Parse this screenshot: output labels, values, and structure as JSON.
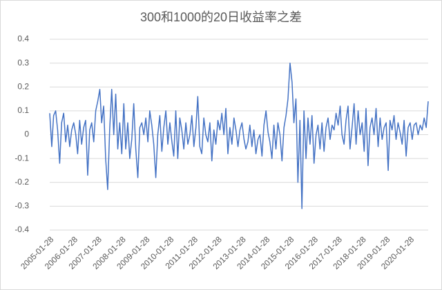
{
  "chart_data": {
    "type": "line",
    "title": "300和1000的20日收益率之差",
    "x": [
      "2005-01-28",
      "2005-02-28",
      "2005-03-28",
      "2005-04-28",
      "2005-05-28",
      "2005-06-28",
      "2005-07-28",
      "2005-08-28",
      "2005-09-28",
      "2005-10-28",
      "2005-11-28",
      "2005-12-28",
      "2006-01-28",
      "2006-02-28",
      "2006-03-28",
      "2006-04-28",
      "2006-05-28",
      "2006-06-28",
      "2006-07-28",
      "2006-08-28",
      "2006-09-28",
      "2006-10-28",
      "2006-11-28",
      "2006-12-28",
      "2007-01-28",
      "2007-02-28",
      "2007-03-28",
      "2007-04-28",
      "2007-05-28",
      "2007-06-28",
      "2007-07-28",
      "2007-08-28",
      "2007-09-28",
      "2007-10-28",
      "2007-11-28",
      "2007-12-28",
      "2008-01-28",
      "2008-02-28",
      "2008-03-28",
      "2008-04-28",
      "2008-05-28",
      "2008-06-28",
      "2008-07-28",
      "2008-08-28",
      "2008-09-28",
      "2008-10-28",
      "2008-11-28",
      "2008-12-28",
      "2009-01-28",
      "2009-02-28",
      "2009-03-28",
      "2009-04-28",
      "2009-05-28",
      "2009-06-28",
      "2009-07-28",
      "2009-08-28",
      "2009-09-28",
      "2009-10-28",
      "2009-11-28",
      "2009-12-28",
      "2010-01-28",
      "2010-02-28",
      "2010-03-28",
      "2010-04-28",
      "2010-05-28",
      "2010-06-28",
      "2010-07-28",
      "2010-08-28",
      "2010-09-28",
      "2010-10-28",
      "2010-11-28",
      "2010-12-28",
      "2011-01-28",
      "2011-02-28",
      "2011-03-28",
      "2011-04-28",
      "2011-05-28",
      "2011-06-28",
      "2011-07-28",
      "2011-08-28",
      "2011-09-28",
      "2011-10-28",
      "2011-11-28",
      "2011-12-28",
      "2012-01-28",
      "2012-02-28",
      "2012-03-28",
      "2012-04-28",
      "2012-05-28",
      "2012-06-28",
      "2012-07-28",
      "2012-08-28",
      "2012-09-28",
      "2012-10-28",
      "2012-11-28",
      "2012-12-28",
      "2013-01-28",
      "2013-02-28",
      "2013-03-28",
      "2013-04-28",
      "2013-05-28",
      "2013-06-28",
      "2013-07-28",
      "2013-08-28",
      "2013-09-28",
      "2013-10-28",
      "2013-11-28",
      "2013-12-28",
      "2014-01-28",
      "2014-02-28",
      "2014-03-28",
      "2014-04-28",
      "2014-05-28",
      "2014-06-28",
      "2014-07-28",
      "2014-08-28",
      "2014-09-28",
      "2014-10-28",
      "2014-11-28",
      "2014-12-28",
      "2015-01-28",
      "2015-02-28",
      "2015-03-28",
      "2015-04-28",
      "2015-05-28",
      "2015-06-28",
      "2015-07-28",
      "2015-08-28",
      "2015-09-28",
      "2015-10-28",
      "2015-11-28",
      "2015-12-28",
      "2016-01-28",
      "2016-02-28",
      "2016-03-28",
      "2016-04-28",
      "2016-05-28",
      "2016-06-28",
      "2016-07-28",
      "2016-08-28",
      "2016-09-28",
      "2016-10-28",
      "2016-11-28",
      "2016-12-28",
      "2017-01-28",
      "2017-02-28",
      "2017-03-28",
      "2017-04-28",
      "2017-05-28",
      "2017-06-28",
      "2017-07-28",
      "2017-08-28",
      "2017-09-28",
      "2017-10-28",
      "2017-11-28",
      "2017-12-28",
      "2018-01-28",
      "2018-02-28",
      "2018-03-28",
      "2018-04-28",
      "2018-05-28",
      "2018-06-28",
      "2018-07-28",
      "2018-08-28",
      "2018-09-28",
      "2018-10-28",
      "2018-11-28",
      "2018-12-28",
      "2019-01-28",
      "2019-02-28",
      "2019-03-28",
      "2019-04-28",
      "2019-05-28",
      "2019-06-28",
      "2019-07-28",
      "2019-08-28",
      "2019-09-28",
      "2019-10-28",
      "2019-11-28",
      "2019-12-28",
      "2020-01-28",
      "2020-02-28",
      "2020-03-28",
      "2020-04-28",
      "2020-05-28",
      "2020-06-28",
      "2020-07-28",
      "2020-08-28",
      "2020-09-28",
      "2020-10-28"
    ],
    "series": [
      {
        "color": "#4472c4",
        "values": [
          0.09,
          -0.05,
          0.08,
          0.1,
          0.02,
          -0.12,
          0.05,
          0.09,
          -0.03,
          0.04,
          -0.05,
          0.02,
          0.05,
          0.0,
          -0.08,
          0.06,
          -0.04,
          0.03,
          0.06,
          -0.17,
          0.02,
          0.05,
          -0.03,
          0.1,
          0.14,
          0.19,
          0.05,
          0.12,
          -0.1,
          -0.23,
          0.02,
          0.19,
          0.0,
          0.17,
          -0.06,
          0.05,
          -0.08,
          0.13,
          -0.06,
          0.05,
          -0.1,
          -0.02,
          0.13,
          -0.06,
          -0.18,
          0.03,
          0.05,
          0.0,
          0.07,
          -0.03,
          0.1,
          0.04,
          -0.04,
          -0.18,
          0.0,
          0.08,
          -0.07,
          0.03,
          0.1,
          -0.04,
          0.05,
          -0.03,
          -0.09,
          0.1,
          -0.1,
          0.07,
          0.02,
          -0.06,
          0.05,
          -0.04,
          0.0,
          0.08,
          -0.05,
          0.03,
          0.16,
          -0.05,
          -0.08,
          0.07,
          0.0,
          -0.03,
          0.05,
          -0.11,
          0.02,
          -0.04,
          0.06,
          0.02,
          0.09,
          0.0,
          0.11,
          -0.08,
          0.03,
          -0.04,
          0.07,
          0.02,
          -0.05,
          0.02,
          0.05,
          -0.02,
          -0.06,
          -0.03,
          0.04,
          -0.05,
          0.02,
          -0.08,
          -0.02,
          0.0,
          -0.09,
          0.04,
          0.1,
          0.01,
          -0.03,
          -0.1,
          0.04,
          -0.06,
          0.05,
          0.0,
          -0.11,
          0.03,
          0.08,
          0.15,
          0.3,
          0.22,
          0.05,
          0.15,
          -0.2,
          0.06,
          -0.31,
          0.1,
          -0.1,
          0.07,
          -0.04,
          0.08,
          -0.12,
          0.0,
          0.04,
          -0.06,
          0.05,
          -0.07,
          0.03,
          0.07,
          -0.02,
          0.04,
          0.02,
          0.09,
          0.04,
          0.12,
          0.0,
          -0.04,
          0.06,
          0.12,
          -0.06,
          0.03,
          0.13,
          -0.04,
          0.1,
          0.0,
          0.05,
          -0.07,
          0.11,
          -0.13,
          0.03,
          0.07,
          0.0,
          0.11,
          -0.05,
          0.07,
          -0.02,
          0.03,
          0.05,
          -0.15,
          0.06,
          0.02,
          0.08,
          -0.02,
          0.05,
          0.01,
          -0.04,
          0.06,
          -0.09,
          0.03,
          0.05,
          -0.02,
          0.04,
          0.05,
          0.0,
          0.04,
          0.02,
          0.07,
          0.03,
          0.14
        ]
      }
    ],
    "xlim": [
      "2005-01-28",
      "2020-10-28"
    ],
    "xticks": [
      "2005-01-28",
      "2006-01-28",
      "2007-01-28",
      "2008-01-28",
      "2009-01-28",
      "2010-01-28",
      "2011-01-28",
      "2012-01-28",
      "2013-01-28",
      "2014-01-28",
      "2015-01-28",
      "2016-01-28",
      "2017-01-28",
      "2018-01-28",
      "2019-01-28",
      "2020-01-28"
    ],
    "ylim": [
      -0.4,
      0.4
    ],
    "yticks": [
      -0.4,
      -0.3,
      -0.2,
      -0.1,
      0,
      0.1,
      0.2,
      0.3,
      0.4
    ],
    "grid": true
  }
}
